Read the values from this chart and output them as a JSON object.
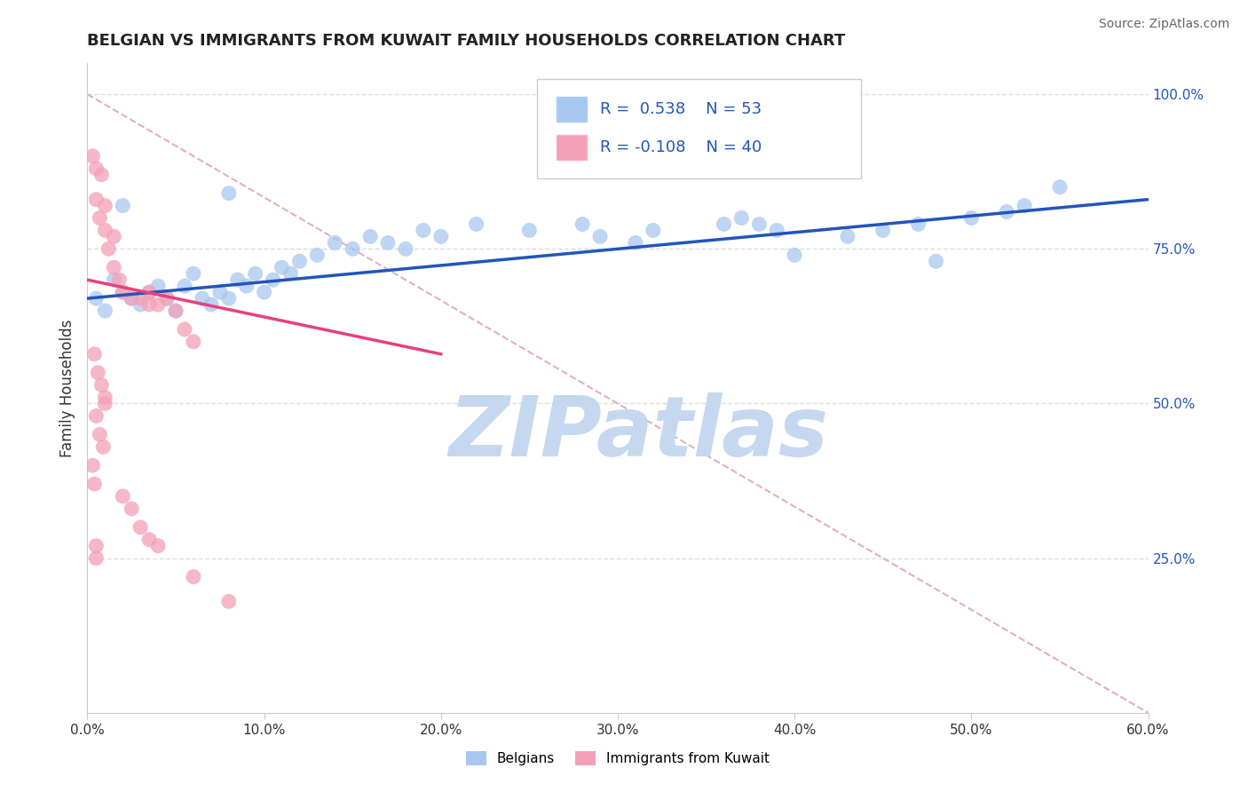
{
  "title": "BELGIAN VS IMMIGRANTS FROM KUWAIT FAMILY HOUSEHOLDS CORRELATION CHART",
  "source": "Source: ZipAtlas.com",
  "ylabel": "Family Households",
  "xlabel_vals": [
    0.0,
    10.0,
    20.0,
    30.0,
    40.0,
    50.0,
    60.0
  ],
  "ylabel_vals_right": [
    25.0,
    50.0,
    75.0,
    100.0
  ],
  "xlim": [
    0.0,
    60.0
  ],
  "ylim": [
    0.0,
    105.0
  ],
  "legend_blue_R": "0.538",
  "legend_blue_N": "53",
  "legend_pink_R": "-0.108",
  "legend_pink_N": "40",
  "blue_color": "#a8c8f0",
  "pink_color": "#f4a0b8",
  "blue_line_color": "#2255bb",
  "pink_line_color": "#e84080",
  "dashed_line_color": "#e0b0c0",
  "grid_color": "#dddddd",
  "watermark": "ZIPatlas",
  "watermark_color": "#c5d8f0",
  "blue_scatter_x": [
    0.5,
    1.0,
    1.5,
    2.0,
    2.5,
    3.0,
    3.5,
    4.0,
    4.5,
    5.0,
    5.5,
    6.0,
    6.5,
    7.0,
    7.5,
    8.0,
    8.5,
    9.0,
    9.5,
    10.0,
    10.5,
    11.0,
    11.5,
    12.0,
    13.0,
    14.0,
    15.0,
    16.0,
    17.0,
    18.0,
    19.0,
    20.0,
    22.0,
    25.0,
    28.0,
    32.0,
    36.0,
    40.0,
    43.0,
    45.0,
    47.0,
    50.0,
    52.0,
    53.0,
    37.0,
    38.0,
    39.0,
    29.0,
    31.0,
    8.0,
    2.0,
    55.0,
    48.0
  ],
  "blue_scatter_y": [
    67.0,
    65.0,
    70.0,
    68.0,
    67.0,
    66.0,
    68.0,
    69.0,
    67.0,
    65.0,
    69.0,
    71.0,
    67.0,
    66.0,
    68.0,
    67.0,
    70.0,
    69.0,
    71.0,
    68.0,
    70.0,
    72.0,
    71.0,
    73.0,
    74.0,
    76.0,
    75.0,
    77.0,
    76.0,
    75.0,
    78.0,
    77.0,
    79.0,
    78.0,
    79.0,
    78.0,
    79.0,
    74.0,
    77.0,
    78.0,
    79.0,
    80.0,
    81.0,
    82.0,
    80.0,
    79.0,
    78.0,
    77.0,
    76.0,
    84.0,
    82.0,
    85.0,
    73.0
  ],
  "pink_scatter_x": [
    0.3,
    0.5,
    0.5,
    0.7,
    0.8,
    1.0,
    1.0,
    1.2,
    1.5,
    1.5,
    1.8,
    2.0,
    2.5,
    3.0,
    3.5,
    3.5,
    4.0,
    4.5,
    5.0,
    5.5,
    6.0,
    0.4,
    0.6,
    0.8,
    1.0,
    1.0,
    0.5,
    0.7,
    0.9,
    0.3,
    0.4,
    2.0,
    2.5,
    3.0,
    3.5,
    4.0,
    0.5,
    0.5,
    6.0,
    8.0
  ],
  "pink_scatter_y": [
    90.0,
    88.0,
    83.0,
    80.0,
    87.0,
    78.0,
    82.0,
    75.0,
    72.0,
    77.0,
    70.0,
    68.0,
    67.0,
    67.0,
    66.0,
    68.0,
    66.0,
    67.0,
    65.0,
    62.0,
    60.0,
    58.0,
    55.0,
    53.0,
    51.0,
    50.0,
    48.0,
    45.0,
    43.0,
    40.0,
    37.0,
    35.0,
    33.0,
    30.0,
    28.0,
    27.0,
    27.0,
    25.0,
    22.0,
    18.0
  ],
  "blue_trend_x": [
    0.0,
    60.0
  ],
  "blue_trend_y": [
    67.0,
    83.0
  ],
  "pink_trend_x": [
    0.0,
    20.0
  ],
  "pink_trend_y": [
    70.0,
    58.0
  ],
  "dashed_trend_x": [
    0.0,
    60.0
  ],
  "dashed_trend_y": [
    100.0,
    0.0
  ]
}
